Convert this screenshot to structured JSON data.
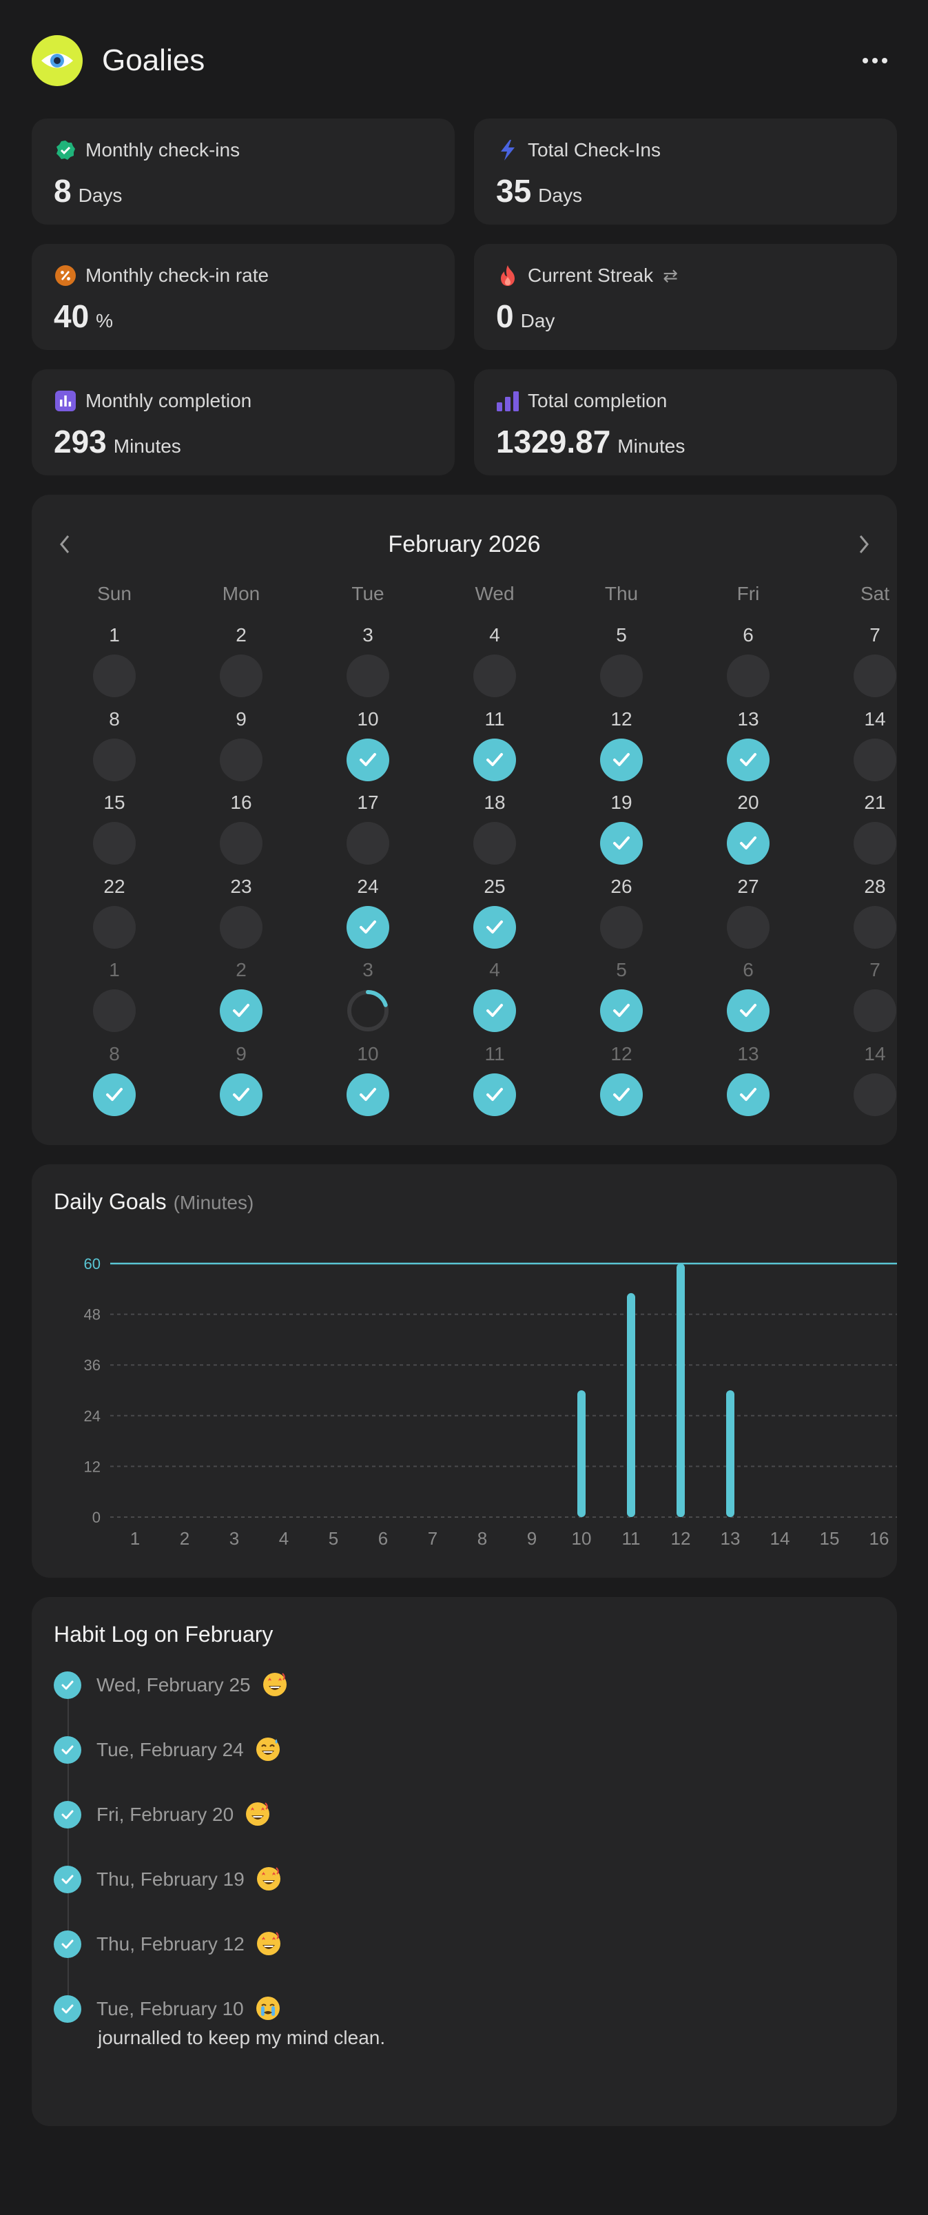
{
  "app": {
    "title": "Goalies",
    "logo_icon": "eye-icon",
    "logo_color": "#d8ee3c",
    "menu_icon": "more-horizontal-icon"
  },
  "stats": [
    {
      "label": "Monthly check-ins",
      "value": "8",
      "unit": "Days",
      "icon": "check-badge-icon",
      "color": "#1fb37a"
    },
    {
      "label": "Total Check-Ins",
      "value": "35",
      "unit": "Days",
      "icon": "bolt-icon",
      "color": "#4a64e0"
    },
    {
      "label": "Monthly check-in rate",
      "value": "40",
      "unit": "%",
      "icon": "percent-badge-icon",
      "color": "#d8731c"
    },
    {
      "label": "Current Streak",
      "value": "0",
      "unit": "Day",
      "icon": "flame-icon",
      "color": "#f0504a",
      "extra_icon": "swap-icon"
    },
    {
      "label": "Monthly completion",
      "value": "293",
      "unit": "Minutes",
      "icon": "bar-chart-icon",
      "color": "#7a5ce0"
    },
    {
      "label": "Total completion",
      "value": "1329.87",
      "unit": "Minutes",
      "icon": "bars-ascending-icon",
      "color": "#7a5ce0"
    }
  ],
  "calendar": {
    "title": "February 2026",
    "weekdays": [
      "Sun",
      "Mon",
      "Tue",
      "Wed",
      "Thu",
      "Fri",
      "Sat"
    ],
    "accent": "#5ac6d4",
    "weeks": [
      [
        {
          "d": "1",
          "s": "empty"
        },
        {
          "d": "2",
          "s": "empty"
        },
        {
          "d": "3",
          "s": "empty"
        },
        {
          "d": "4",
          "s": "empty"
        },
        {
          "d": "5",
          "s": "empty"
        },
        {
          "d": "6",
          "s": "empty"
        },
        {
          "d": "7",
          "s": "empty"
        }
      ],
      [
        {
          "d": "8",
          "s": "empty"
        },
        {
          "d": "9",
          "s": "empty"
        },
        {
          "d": "10",
          "s": "done"
        },
        {
          "d": "11",
          "s": "done"
        },
        {
          "d": "12",
          "s": "done"
        },
        {
          "d": "13",
          "s": "done"
        },
        {
          "d": "14",
          "s": "empty"
        }
      ],
      [
        {
          "d": "15",
          "s": "empty"
        },
        {
          "d": "16",
          "s": "empty"
        },
        {
          "d": "17",
          "s": "empty"
        },
        {
          "d": "18",
          "s": "empty"
        },
        {
          "d": "19",
          "s": "done"
        },
        {
          "d": "20",
          "s": "done"
        },
        {
          "d": "21",
          "s": "empty"
        }
      ],
      [
        {
          "d": "22",
          "s": "empty"
        },
        {
          "d": "23",
          "s": "empty"
        },
        {
          "d": "24",
          "s": "done"
        },
        {
          "d": "25",
          "s": "done"
        },
        {
          "d": "26",
          "s": "empty"
        },
        {
          "d": "27",
          "s": "empty"
        },
        {
          "d": "28",
          "s": "empty"
        }
      ],
      [
        {
          "d": "1",
          "s": "empty",
          "o": true
        },
        {
          "d": "2",
          "s": "done",
          "o": true
        },
        {
          "d": "3",
          "s": "partial",
          "o": true,
          "p": 0.2
        },
        {
          "d": "4",
          "s": "done",
          "o": true
        },
        {
          "d": "5",
          "s": "done",
          "o": true
        },
        {
          "d": "6",
          "s": "done",
          "o": true
        },
        {
          "d": "7",
          "s": "empty",
          "o": true
        }
      ],
      [
        {
          "d": "8",
          "s": "done",
          "o": true
        },
        {
          "d": "9",
          "s": "done",
          "o": true
        },
        {
          "d": "10",
          "s": "done",
          "o": true
        },
        {
          "d": "11",
          "s": "done",
          "o": true
        },
        {
          "d": "12",
          "s": "done",
          "o": true
        },
        {
          "d": "13",
          "s": "done",
          "o": true
        },
        {
          "d": "14",
          "s": "empty",
          "o": true
        }
      ]
    ]
  },
  "daily_goals": {
    "title": "Daily Goals",
    "subtitle": "(Minutes)"
  },
  "chart_data": {
    "type": "bar",
    "categories": [
      "1",
      "2",
      "3",
      "4",
      "5",
      "6",
      "7",
      "8",
      "9",
      "10",
      "11",
      "12",
      "13",
      "14",
      "15",
      "16"
    ],
    "values": [
      0,
      0,
      0,
      0,
      0,
      0,
      0,
      0,
      0,
      30,
      53,
      60,
      30,
      0,
      0,
      0
    ],
    "yticks": [
      0,
      12,
      24,
      36,
      48,
      60
    ],
    "ylim": [
      0,
      60
    ],
    "goal_line": 60,
    "color": "#5ac6d4"
  },
  "habit_log": {
    "title": "Habit Log on February",
    "items": [
      {
        "date": "Wed, February 25",
        "emoji": "star-struck-emoji"
      },
      {
        "date": "Tue, February 24",
        "emoji": "grinning-sweat-emoji"
      },
      {
        "date": "Fri, February 20",
        "emoji": "star-struck-emoji"
      },
      {
        "date": "Thu, February 19",
        "emoji": "star-struck-emoji"
      },
      {
        "date": "Thu, February 12",
        "emoji": "star-struck-emoji"
      },
      {
        "date": "Tue, February 10",
        "emoji": "crying-emoji",
        "note": "journalled to keep my mind clean."
      }
    ]
  }
}
